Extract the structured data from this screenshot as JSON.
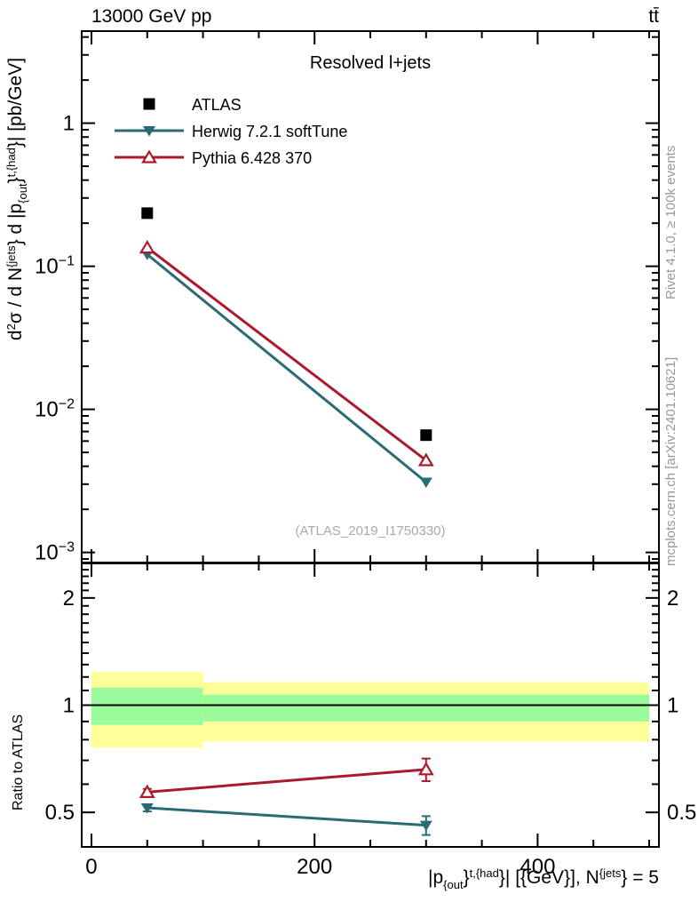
{
  "titles": {
    "top_left": "13000 GeV pp",
    "top_right": "tt̄",
    "right_top": "Rivet 4.1.0, ≥ 100k events",
    "right_bottom": "mcplots.cern.ch [arXiv:2401.10621]"
  },
  "chart_data": {
    "type": "line",
    "subtitle": "Resolved l+jets",
    "watermark": "(ATLAS_2019_I1750330)",
    "x_axis": {
      "title_parts": [
        {
          "t": "|p"
        },
        {
          "t": "{out",
          "sub": true
        },
        {
          "t": "}"
        },
        {
          "t": "t,{had",
          "sup": true
        },
        {
          "t": "}| [{GeV}], N"
        },
        {
          "t": "{jets",
          "sup": true
        },
        {
          "t": "} = 5"
        }
      ],
      "range_gev": [
        0,
        500
      ],
      "frame_range_gev": [
        -8.75,
        508.75
      ],
      "major_ticks": [
        0,
        200,
        400
      ],
      "major_labels": [
        "0",
        "200",
        "400"
      ],
      "minor_ticks": [
        50,
        100,
        150,
        250,
        300,
        350,
        450,
        500
      ]
    },
    "y_main": {
      "title_parts": [
        {
          "t": "d"
        },
        {
          "t": "2",
          "sup": true
        },
        {
          "t": "σ / d N"
        },
        {
          "t": "{jets",
          "sup": true
        },
        {
          "t": "} d |p"
        },
        {
          "t": "{out",
          "sub": true
        },
        {
          "t": "}"
        },
        {
          "t": "t,{had",
          "sup": true
        },
        {
          "t": "}| [pb/GeV]"
        }
      ],
      "scale": "log",
      "range": [
        0.00085,
        4.4
      ],
      "major_ticks": [
        1,
        0.1,
        0.01,
        0.001
      ],
      "major_labels": [
        {
          "base": "1",
          "exp": null
        },
        {
          "base": "10",
          "exp": "−1"
        },
        {
          "base": "10",
          "exp": "−2"
        },
        {
          "base": "10",
          "exp": "−3"
        }
      ]
    },
    "y_ratio": {
      "title": "Ratio to ATLAS",
      "scale": "log",
      "range": [
        0.4,
        2.5
      ],
      "major_ticks": [
        0.5,
        1,
        2
      ],
      "major_labels": [
        "0.5",
        "1",
        "2"
      ],
      "minor_ticks": [
        0.6,
        0.7,
        0.8,
        0.9,
        1.1,
        1.2,
        1.3,
        1.4,
        1.5,
        1.6,
        1.7,
        1.8,
        1.9,
        2.1,
        2.2,
        2.3,
        2.4
      ],
      "reference_line": 1
    },
    "bins_gev": [
      [
        0,
        100
      ],
      [
        100,
        500
      ]
    ],
    "x_points_gev": [
      50,
      300
    ],
    "series": [
      {
        "name": "ATLAS",
        "marker": "square-filled",
        "color": "#000000",
        "line": false,
        "values": [
          0.235,
          0.0066
        ]
      },
      {
        "name": "Herwig 7.2.1 softTune",
        "marker": "triangle-down-filled",
        "color": "#2a6b75",
        "line": true,
        "values": [
          0.121,
          0.0031
        ],
        "ratio": [
          0.515,
          0.46
        ],
        "ratio_err": [
          0.012,
          0.028
        ]
      },
      {
        "name": "Pythia 6.428 370",
        "marker": "triangle-up-open",
        "color": "#aa192d",
        "line": true,
        "values": [
          0.135,
          0.0044
        ],
        "ratio": [
          0.57,
          0.66
        ],
        "ratio_err": [
          0.012,
          0.048
        ]
      }
    ],
    "uncertainty_bands": {
      "yellow_color": "#ffff99",
      "green_color": "#99fb99",
      "bins": [
        {
          "x_gev": [
            0,
            100
          ],
          "yellow": [
            0.76,
            1.24
          ],
          "green": [
            0.88,
            1.12
          ]
        },
        {
          "x_gev": [
            100,
            500
          ],
          "yellow": [
            0.79,
            1.16
          ],
          "green": [
            0.9,
            1.07
          ]
        }
      ]
    }
  }
}
